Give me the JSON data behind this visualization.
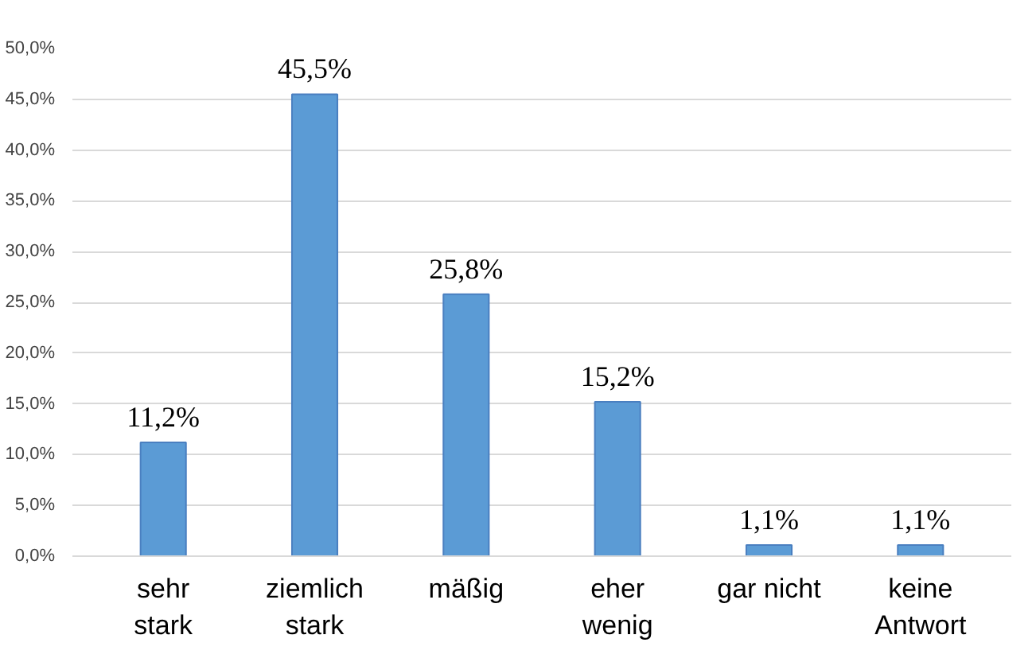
{
  "chart_data": {
    "type": "bar",
    "categories": [
      "sehr\nstark",
      "ziemlich\nstark",
      "mäßig",
      "eher\nwenig",
      "gar nicht",
      "keine\nAntwort"
    ],
    "values": [
      11.2,
      45.5,
      25.8,
      15.2,
      1.1,
      1.1
    ],
    "value_labels": [
      "11,2%",
      "45,5%",
      "25,8%",
      "15,2%",
      "1,1%",
      "1,1%"
    ],
    "color": "#5b9bd5",
    "ylim": [
      0,
      50
    ],
    "yticks": [
      {
        "value": 0,
        "label": "0,0%"
      },
      {
        "value": 5,
        "label": "5,0%"
      },
      {
        "value": 10,
        "label": "10,0%"
      },
      {
        "value": 15,
        "label": "15,0%"
      },
      {
        "value": 20,
        "label": "20,0%"
      },
      {
        "value": 25,
        "label": "25,0%"
      },
      {
        "value": 30,
        "label": "30,0%"
      },
      {
        "value": 35,
        "label": "35,0%"
      },
      {
        "value": 40,
        "label": "40,0%"
      },
      {
        "value": 45,
        "label": "45,0%"
      },
      {
        "value": 50,
        "label": "50,0%"
      }
    ],
    "grid": "y"
  }
}
